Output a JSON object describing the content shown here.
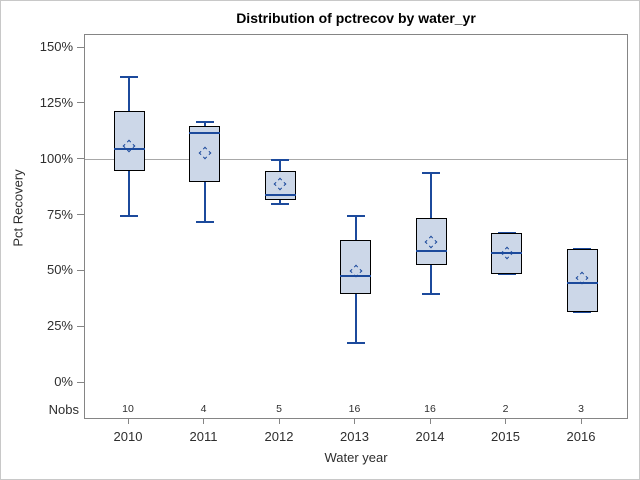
{
  "chart_data": {
    "type": "box",
    "title": "Distribution of pctrecov by water_yr",
    "xlabel": "Water year",
    "ylabel": "Pct Recovery",
    "nobs_label": "Nobs",
    "ylim": [
      0,
      150
    ],
    "y_ticks": [
      {
        "value": 150,
        "label": "150%"
      },
      {
        "value": 125,
        "label": "125%"
      },
      {
        "value": 100,
        "label": "100%"
      },
      {
        "value": 75,
        "label": "75%"
      },
      {
        "value": 50,
        "label": "50%"
      },
      {
        "value": 25,
        "label": "25%"
      },
      {
        "value": 0,
        "label": "0%"
      }
    ],
    "reference_line": 100,
    "grid": "off",
    "legend": "none",
    "categories": [
      "2010",
      "2011",
      "2012",
      "2013",
      "2014",
      "2015",
      "2016"
    ],
    "series": [
      {
        "category": "2010",
        "nobs": 10,
        "whisker_low": 75,
        "q1": 95,
        "median": 105,
        "mean": 106,
        "q3": 122,
        "whisker_high": 137
      },
      {
        "category": "2011",
        "nobs": 4,
        "whisker_low": 72,
        "q1": 90,
        "median": 112,
        "mean": 103,
        "q3": 115,
        "whisker_high": 117
      },
      {
        "category": "2012",
        "nobs": 5,
        "whisker_low": 80,
        "q1": 82,
        "median": 84,
        "mean": 89,
        "q3": 95,
        "whisker_high": 100
      },
      {
        "category": "2013",
        "nobs": 16,
        "whisker_low": 18,
        "q1": 40,
        "median": 48,
        "mean": 50,
        "q3": 64,
        "whisker_high": 75
      },
      {
        "category": "2014",
        "nobs": 16,
        "whisker_low": 40,
        "q1": 53,
        "median": 59,
        "mean": 63,
        "q3": 74,
        "whisker_high": 94
      },
      {
        "category": "2015",
        "nobs": 2,
        "whisker_low": 49,
        "q1": 49,
        "median": 58,
        "mean": 58,
        "q3": 67,
        "whisker_high": 67
      },
      {
        "category": "2016",
        "nobs": 3,
        "whisker_low": 32,
        "q1": 32,
        "median": 45,
        "mean": 47,
        "q3": 60,
        "whisker_high": 60
      }
    ],
    "colors": {
      "box_fill": "#CCD7E8",
      "box_border": "#000000",
      "line_blue": "#1C4A9C",
      "reference_line": "#A8A8A8",
      "plot_border": "#858585",
      "text": "#2e2e2e",
      "title_text": "#000000"
    }
  }
}
